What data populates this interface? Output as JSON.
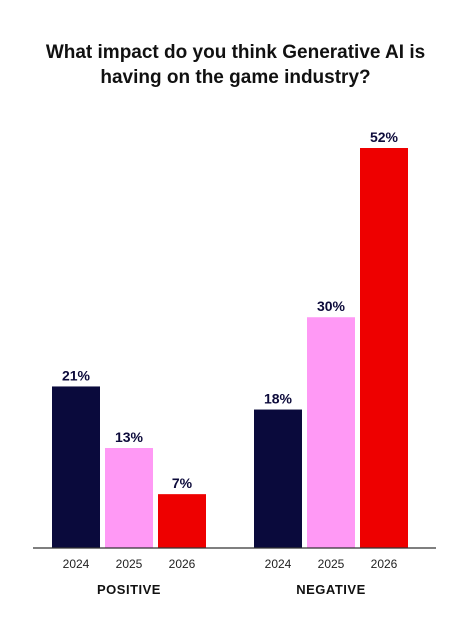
{
  "title_lines": [
    "What impact do you think Generative AI is",
    "having on the game industry?"
  ],
  "colors": {
    "2024": "#0a0a3c",
    "2025": "#ff99f5",
    "2026": "#ee0000",
    "axis": "#333333"
  },
  "chart_data": {
    "type": "bar",
    "title": "What impact do you think Generative AI is having on the game industry?",
    "ylim": [
      0,
      52
    ],
    "grid": false,
    "groups": [
      {
        "name": "POSITIVE",
        "bars": [
          {
            "year": "2024",
            "value": 21,
            "label": "21%"
          },
          {
            "year": "2025",
            "value": 13,
            "label": "13%"
          },
          {
            "year": "2026",
            "value": 7,
            "label": "7%"
          }
        ]
      },
      {
        "name": "NEGATIVE",
        "bars": [
          {
            "year": "2024",
            "value": 18,
            "label": "18%"
          },
          {
            "year": "2025",
            "value": 30,
            "label": "30%"
          },
          {
            "year": "2026",
            "value": 52,
            "label": "52%"
          }
        ]
      }
    ]
  }
}
